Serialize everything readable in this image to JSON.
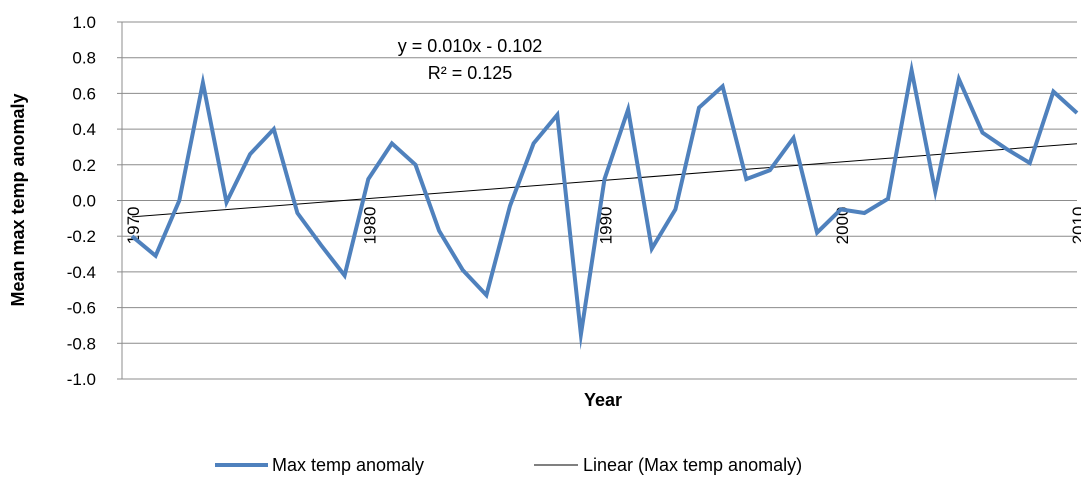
{
  "chart_data": {
    "type": "line",
    "title": "",
    "xlabel": "Year",
    "ylabel": "Mean max temp  anomaly",
    "xlim": [
      1970,
      2010
    ],
    "ylim": [
      -1.0,
      1.0
    ],
    "y_ticks": [
      1.0,
      0.8,
      0.6,
      0.4,
      0.2,
      0.0,
      -0.2,
      -0.4,
      -0.6,
      -0.8,
      -1.0
    ],
    "y_tick_labels": [
      "1.0",
      "0.8",
      "0.6",
      "0.4",
      "0.2",
      "0.0",
      "-0.2",
      "-0.4",
      "-0.6",
      "-0.8",
      "-1.0"
    ],
    "x_ticks": [
      1970,
      1980,
      1990,
      2000,
      2010
    ],
    "x_tick_labels": [
      "1970",
      "1980",
      "1990",
      "2000",
      "2010"
    ],
    "grid": "horizontal",
    "legend_position": "bottom",
    "series": [
      {
        "name": "Max temp anomaly",
        "color": "#4f81bd",
        "x": [
          1970,
          1971,
          1972,
          1973,
          1974,
          1975,
          1976,
          1977,
          1978,
          1979,
          1980,
          1981,
          1982,
          1983,
          1984,
          1985,
          1986,
          1987,
          1988,
          1989,
          1990,
          1991,
          1992,
          1993,
          1994,
          1995,
          1996,
          1997,
          1998,
          1999,
          2000,
          2001,
          2002,
          2003,
          2004,
          2005,
          2006,
          2007,
          2008,
          2009,
          2010
        ],
        "y": [
          -0.2,
          -0.31,
          0.0,
          0.66,
          -0.01,
          0.26,
          0.4,
          -0.07,
          -0.25,
          -0.42,
          0.12,
          0.32,
          0.2,
          -0.17,
          -0.39,
          -0.53,
          -0.03,
          0.32,
          0.48,
          -0.75,
          0.12,
          0.51,
          -0.27,
          -0.05,
          0.52,
          0.64,
          0.12,
          0.17,
          0.35,
          -0.18,
          -0.05,
          -0.07,
          0.01,
          0.73,
          0.05,
          0.68,
          0.38,
          0.29,
          0.21,
          0.61,
          0.49
        ]
      },
      {
        "name": "Linear (Max temp anomaly)",
        "color": "#000000",
        "x": [
          1970,
          2010
        ],
        "y": [
          -0.092,
          0.318
        ]
      }
    ],
    "annotations": [
      "y = 0.010x - 0.102",
      "R² = 0.125"
    ]
  }
}
